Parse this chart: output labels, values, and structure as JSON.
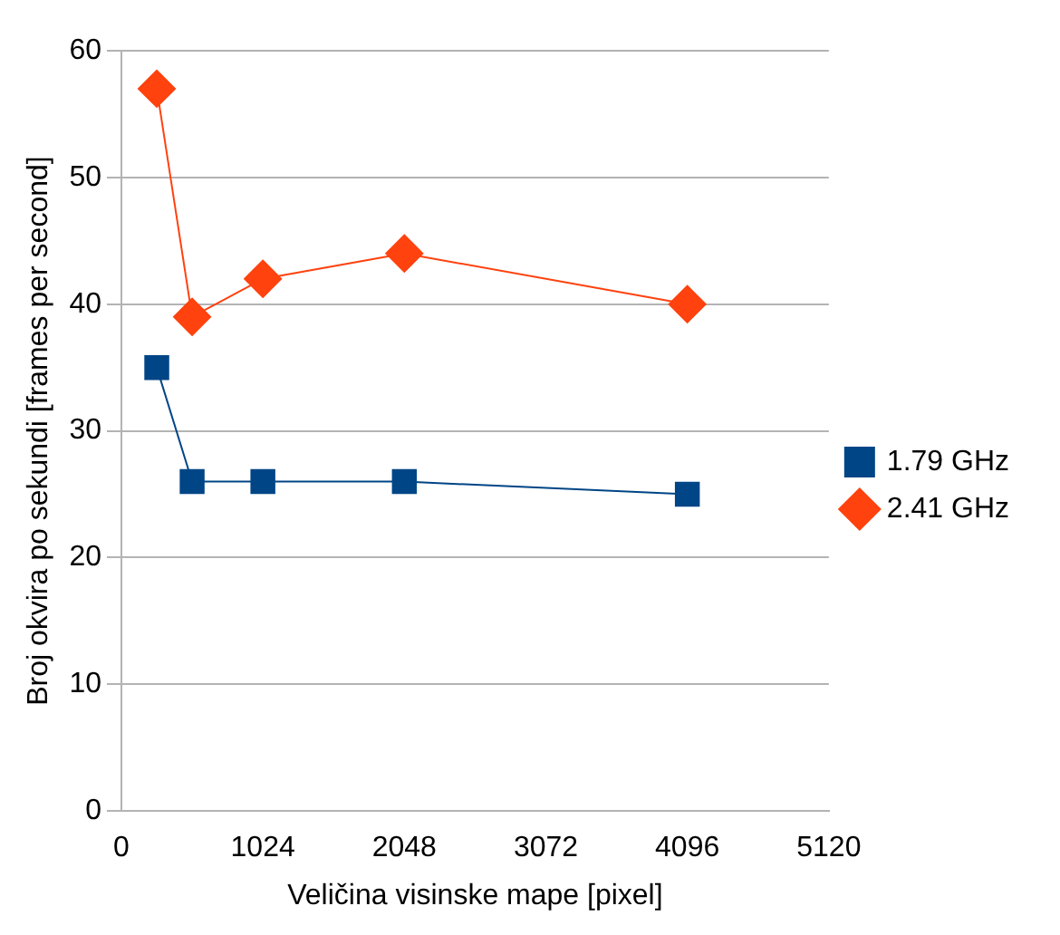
{
  "chart_data": {
    "type": "line",
    "xlabel": "Veličina visinske mape [pixel]",
    "ylabel": "Broj okvira po sekundi [frames per second]",
    "xlim": [
      0,
      5120
    ],
    "xticks": [
      0,
      1024,
      2048,
      3072,
      4096,
      5120
    ],
    "ylim": [
      0,
      60
    ],
    "yticks": [
      0,
      10,
      20,
      30,
      40,
      50,
      60
    ],
    "grid": "y",
    "legend": "right",
    "series": [
      {
        "name": "1.79 GHz",
        "color": "#004586",
        "marker": "square",
        "x": [
          256,
          512,
          1024,
          2048,
          4096
        ],
        "values": [
          35,
          26,
          26,
          26,
          25
        ]
      },
      {
        "name": "2.41 GHz",
        "color": "#ff420e",
        "marker": "diamond",
        "x": [
          256,
          512,
          1024,
          2048,
          4096
        ],
        "values": [
          57,
          39,
          42,
          44,
          40
        ]
      }
    ]
  }
}
